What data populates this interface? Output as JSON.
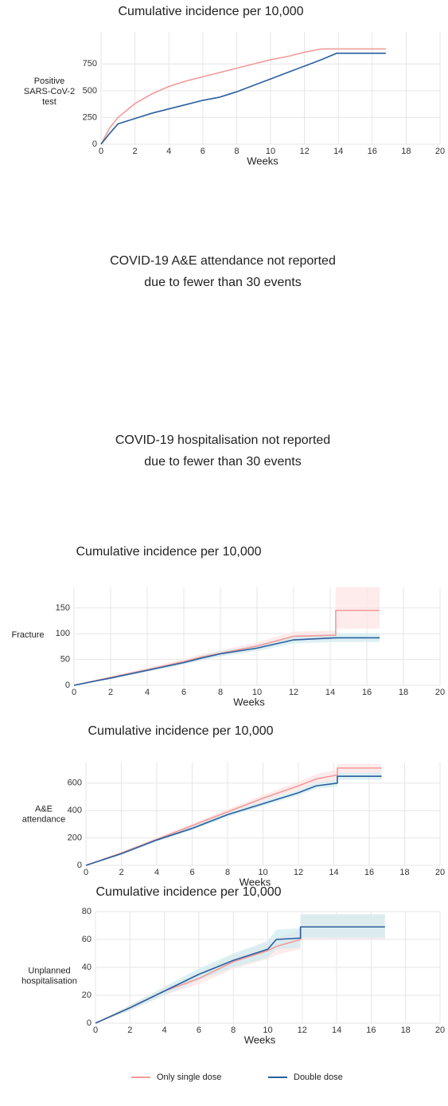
{
  "chart_data": [
    {
      "type": "line",
      "title": "Cumulative incidence per 10,000",
      "ylabel": [
        "Positive",
        "SARS-CoV-2",
        "test"
      ],
      "xlabel": "Weeks",
      "xlim": [
        0,
        20
      ],
      "xticks": [
        0,
        2,
        4,
        6,
        8,
        10,
        12,
        14,
        16,
        18,
        20
      ],
      "ylim": [
        0,
        1050
      ],
      "yticks": [
        0,
        250,
        500,
        750
      ],
      "grid": true,
      "series": [
        {
          "color": "#f29a9a",
          "band_color": "#fde3e3",
          "x": [
            0,
            0.5,
            1,
            2,
            3,
            4,
            5,
            6,
            7,
            8,
            9,
            10,
            11,
            12,
            13,
            14,
            16.8
          ],
          "values": [
            0,
            150,
            250,
            380,
            470,
            540,
            590,
            630,
            670,
            710,
            750,
            790,
            820,
            860,
            890,
            890,
            890
          ]
        },
        {
          "color": "#2a5f9e",
          "band_color": "#cdebef",
          "x": [
            0,
            0.5,
            1,
            2,
            3,
            4,
            5,
            6,
            7,
            8,
            9,
            10,
            11,
            12,
            13,
            13.9,
            16.8
          ],
          "values": [
            0,
            100,
            190,
            240,
            290,
            330,
            370,
            410,
            440,
            490,
            550,
            610,
            670,
            730,
            790,
            850,
            850
          ]
        }
      ]
    },
    {
      "type": "line",
      "title": "Cumulative incidence per 10,000",
      "ylabel": [
        "Fracture"
      ],
      "xlabel": "Weeks",
      "xlim": [
        0,
        20
      ],
      "xticks": [
        0,
        2,
        4,
        6,
        8,
        10,
        12,
        14,
        16,
        18,
        20
      ],
      "ylim": [
        0,
        190
      ],
      "yticks": [
        0,
        50,
        100,
        150
      ],
      "grid": true,
      "series": [
        {
          "color": "#f29a9a",
          "band_color": "#fde3e3",
          "x": [
            0,
            2,
            4,
            6,
            7,
            8,
            10,
            12,
            14.3,
            14.3,
            16.7
          ],
          "values": [
            0,
            15,
            30,
            46,
            55,
            62,
            76,
            95,
            97,
            145,
            145
          ],
          "lower": [
            0,
            12,
            26,
            41,
            49,
            56,
            69,
            86,
            88,
            110,
            110
          ],
          "upper": [
            0,
            18,
            34,
            51,
            61,
            68,
            83,
            104,
            106,
            190,
            190
          ]
        },
        {
          "color": "#2a5f9e",
          "band_color": "#cdebef",
          "x": [
            0,
            2,
            4,
            6,
            7,
            8,
            10,
            12,
            14.3,
            16.7
          ],
          "values": [
            0,
            14,
            29,
            44,
            53,
            61,
            72,
            88,
            92,
            92
          ],
          "lower": [
            0,
            12,
            26,
            40,
            48,
            56,
            66,
            81,
            84,
            84
          ],
          "upper": [
            0,
            16,
            32,
            48,
            58,
            66,
            78,
            95,
            100,
            100
          ]
        }
      ]
    },
    {
      "type": "line",
      "title": "Cumulative incidence per 10,000",
      "ylabel": [
        "A&E",
        "attendance"
      ],
      "xlabel": "Weeks",
      "xlim": [
        0,
        20
      ],
      "xticks": [
        0,
        2,
        4,
        6,
        8,
        10,
        12,
        14,
        16,
        18,
        20
      ],
      "ylim": [
        0,
        750
      ],
      "yticks": [
        0,
        200,
        400,
        600
      ],
      "grid": true,
      "series": [
        {
          "color": "#f29a9a",
          "band_color": "#fde3e3",
          "x": [
            0,
            2,
            4,
            6,
            8,
            10,
            12,
            13,
            14.2,
            14.2,
            16.7
          ],
          "values": [
            0,
            90,
            190,
            290,
            390,
            490,
            580,
            630,
            660,
            710,
            710
          ],
          "lower": [
            0,
            82,
            178,
            274,
            370,
            466,
            550,
            595,
            622,
            670,
            670
          ],
          "upper": [
            0,
            98,
            202,
            306,
            410,
            514,
            610,
            665,
            698,
            740,
            740
          ]
        },
        {
          "color": "#2a5f9e",
          "band_color": "#cdebef",
          "x": [
            0,
            2,
            4,
            6,
            8,
            10,
            12,
            13,
            14.2,
            14.2,
            16.7
          ],
          "values": [
            0,
            85,
            185,
            270,
            370,
            450,
            530,
            580,
            600,
            650,
            650
          ],
          "lower": [
            0,
            78,
            174,
            257,
            355,
            433,
            510,
            558,
            576,
            625,
            625
          ],
          "upper": [
            0,
            92,
            196,
            283,
            385,
            467,
            550,
            602,
            624,
            675,
            675
          ]
        }
      ]
    },
    {
      "type": "line",
      "title": "Cumulative incidence per 10,000",
      "ylabel": [
        "Unplanned",
        "hospitalisation"
      ],
      "xlabel": "Weeks",
      "xlim": [
        0,
        20
      ],
      "xticks": [
        0,
        2,
        4,
        6,
        8,
        10,
        12,
        14,
        16,
        18,
        20
      ],
      "ylim": [
        0,
        80
      ],
      "yticks": [
        0,
        20,
        40,
        60,
        80
      ],
      "grid": true,
      "series": [
        {
          "name": "Only single dose",
          "color": "#f29a9a",
          "band_color": "#fde3e3",
          "x": [
            0,
            2,
            4,
            6,
            8,
            10,
            10.5,
            11.9,
            11.9,
            16.8
          ],
          "values": [
            0,
            11,
            23,
            32,
            44,
            52,
            55,
            60,
            69,
            69
          ],
          "lower": [
            0,
            9,
            20,
            28,
            39,
            46,
            49,
            53,
            60,
            60
          ],
          "upper": [
            0,
            13,
            26,
            36,
            49,
            58,
            61,
            67,
            78,
            78
          ]
        },
        {
          "name": "Double dose",
          "color": "#2a5f9e",
          "band_color": "#cdebef",
          "x": [
            0,
            2,
            4,
            6,
            8,
            10,
            10.5,
            11.9,
            11.9,
            16.8
          ],
          "values": [
            0,
            11,
            23,
            35,
            45,
            53,
            60,
            61,
            69,
            69
          ],
          "lower": [
            0,
            9,
            20,
            31,
            40,
            47,
            53,
            54,
            61,
            61
          ],
          "upper": [
            0,
            13,
            26,
            39,
            50,
            59,
            67,
            68,
            78,
            78
          ]
        }
      ]
    }
  ],
  "notices": [
    {
      "lines": [
        "COVID-19 A&E attendance not reported",
        "due to fewer than 30 events"
      ]
    },
    {
      "lines": [
        "COVID-19 hospitalisation not reported",
        "due to fewer than 30 events"
      ]
    }
  ]
}
